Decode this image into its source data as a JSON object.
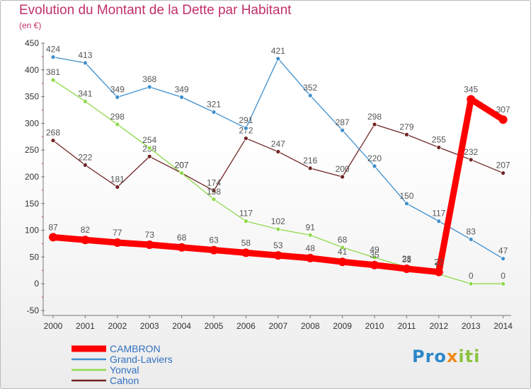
{
  "title": "Evolution du Montant de la Dette par Habitant",
  "subtitle": "(en €)",
  "logo": {
    "part1": "Pro",
    "part2": "x",
    "part3": "iti"
  },
  "chart_data": {
    "type": "line",
    "x": [
      2000,
      2001,
      2002,
      2003,
      2004,
      2005,
      2006,
      2007,
      2008,
      2009,
      2010,
      2011,
      2012,
      2013,
      2014
    ],
    "ylim": [
      -50,
      450
    ],
    "yticks": [
      -50,
      0,
      50,
      100,
      150,
      200,
      250,
      300,
      350,
      400,
      450
    ],
    "grid": false,
    "legend_position": "bottom-left",
    "series": [
      {
        "name": "CAMBRON",
        "color": "#ff0000",
        "values": [
          87,
          82,
          77,
          73,
          68,
          63,
          58,
          53,
          48,
          41,
          35,
          28,
          22,
          345,
          307
        ]
      },
      {
        "name": "Grand-Laviers",
        "color": "#3f8fcc",
        "values": [
          424,
          413,
          349,
          368,
          349,
          321,
          291,
          421,
          352,
          287,
          220,
          150,
          117,
          83,
          47
        ]
      },
      {
        "name": "Yonval",
        "color": "#8ed94a",
        "values": [
          381,
          341,
          298,
          254,
          207,
          158,
          117,
          102,
          91,
          68,
          49,
          31,
          18,
          0,
          0
        ]
      },
      {
        "name": "Cahon",
        "color": "#702424",
        "values": [
          268,
          222,
          181,
          238,
          207,
          174,
          272,
          247,
          216,
          200,
          298,
          279,
          255,
          232,
          207
        ]
      }
    ]
  }
}
